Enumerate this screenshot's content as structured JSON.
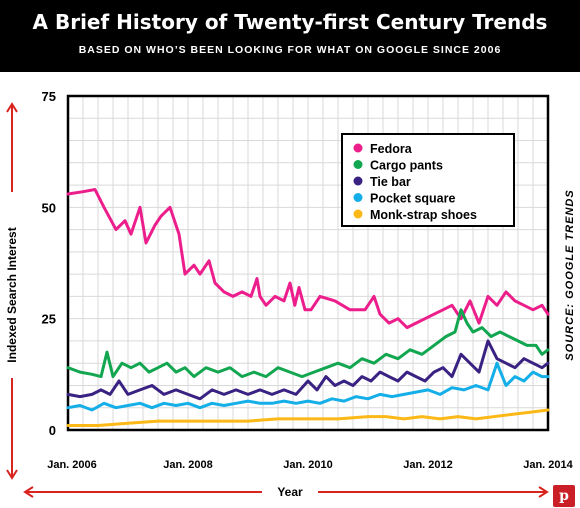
{
  "header": {
    "title": "A Brief History of Twenty-first Century Trends",
    "subtitle": "BASED ON WHO’S BEEN LOOKING FOR WHAT ON GOOGLE SINCE 2006"
  },
  "source_note": "SOURCE: GOOGLE TRENDS",
  "share_button": {
    "label": "p",
    "icon": "pinterest-icon"
  },
  "chart_data": {
    "type": "line",
    "title": "A Brief History of Twenty-first Century Trends",
    "subtitle": "BASED ON WHO’S BEEN LOOKING FOR WHAT ON GOOGLE SINCE 2006",
    "xlabel": "Year",
    "ylabel": "Indexed Search Interest",
    "xlim": [
      2006.0,
      2014.0
    ],
    "ylim": [
      0,
      75
    ],
    "x_ticks": [
      {
        "value": 2006,
        "label": "Jan. 2006"
      },
      {
        "value": 2008,
        "label": "Jan. 2008"
      },
      {
        "value": 2010,
        "label": "Jan. 2010"
      },
      {
        "value": 2012,
        "label": "Jan. 2012"
      },
      {
        "value": 2014,
        "label": "Jan. 2014"
      }
    ],
    "y_ticks": [
      0,
      25,
      50,
      75
    ],
    "grid": true,
    "legend_position": "top-right",
    "series": [
      {
        "name": "Fedora",
        "color": "#ec1e8c",
        "x": [
          2006.0,
          2006.25,
          2006.45,
          2006.6,
          2006.8,
          2006.95,
          2007.05,
          2007.2,
          2007.3,
          2007.45,
          2007.55,
          2007.7,
          2007.85,
          2007.95,
          2008.1,
          2008.2,
          2008.35,
          2008.45,
          2008.6,
          2008.75,
          2008.9,
          2009.05,
          2009.15,
          2009.2,
          2009.3,
          2009.45,
          2009.6,
          2009.7,
          2009.78,
          2009.85,
          2009.95,
          2010.05,
          2010.2,
          2010.45,
          2010.7,
          2010.95,
          2011.1,
          2011.2,
          2011.35,
          2011.5,
          2011.65,
          2011.8,
          2011.95,
          2012.1,
          2012.25,
          2012.4,
          2012.55,
          2012.7,
          2012.85,
          2013.0,
          2013.15,
          2013.3,
          2013.45,
          2013.6,
          2013.75,
          2013.9,
          2014.0
        ],
        "values": [
          53,
          53.5,
          54,
          50,
          45,
          47,
          44,
          50,
          42,
          46,
          48,
          50,
          44,
          35,
          37,
          35,
          38,
          33,
          31,
          30,
          31,
          30,
          34,
          30,
          28,
          30,
          29,
          33,
          28,
          32,
          27,
          27,
          30,
          29,
          27,
          27,
          30,
          26,
          24,
          25,
          23,
          24,
          25,
          26,
          27,
          28,
          25,
          29,
          24,
          30,
          28,
          31,
          29,
          28,
          27,
          28,
          26
        ]
      },
      {
        "name": "Cargo pants",
        "color": "#12a650",
        "x": [
          2006.0,
          2006.2,
          2006.4,
          2006.55,
          2006.65,
          2006.75,
          2006.9,
          2007.05,
          2007.2,
          2007.35,
          2007.5,
          2007.65,
          2007.8,
          2007.95,
          2008.1,
          2008.3,
          2008.5,
          2008.7,
          2008.9,
          2009.1,
          2009.3,
          2009.5,
          2009.7,
          2009.9,
          2010.1,
          2010.3,
          2010.5,
          2010.7,
          2010.9,
          2011.1,
          2011.3,
          2011.5,
          2011.7,
          2011.9,
          2012.1,
          2012.3,
          2012.45,
          2012.55,
          2012.65,
          2012.75,
          2012.9,
          2013.05,
          2013.2,
          2013.35,
          2013.5,
          2013.65,
          2013.8,
          2013.9,
          2014.0
        ],
        "values": [
          14,
          13,
          12.5,
          12,
          17.5,
          12,
          15,
          14,
          15,
          13,
          14,
          15,
          13,
          14,
          12,
          14,
          13,
          14,
          12,
          13,
          12,
          14,
          13,
          12,
          13,
          14,
          15,
          14,
          16,
          15,
          17,
          16,
          18,
          17,
          19,
          21,
          22,
          27,
          24,
          22,
          23,
          21,
          22,
          21,
          20,
          19,
          19,
          17,
          18
        ]
      },
      {
        "name": "Tie bar",
        "color": "#3a2282",
        "x": [
          2006.0,
          2006.2,
          2006.4,
          2006.55,
          2006.7,
          2006.85,
          2007.0,
          2007.2,
          2007.4,
          2007.6,
          2007.8,
          2008.0,
          2008.2,
          2008.4,
          2008.6,
          2008.8,
          2009.0,
          2009.2,
          2009.4,
          2009.6,
          2009.8,
          2010.0,
          2010.15,
          2010.3,
          2010.45,
          2010.6,
          2010.75,
          2010.9,
          2011.05,
          2011.2,
          2011.35,
          2011.5,
          2011.65,
          2011.8,
          2011.95,
          2012.1,
          2012.25,
          2012.4,
          2012.55,
          2012.7,
          2012.85,
          2013.0,
          2013.15,
          2013.3,
          2013.45,
          2013.6,
          2013.75,
          2013.9,
          2014.0
        ],
        "values": [
          8,
          7.5,
          8,
          9,
          8,
          11,
          8,
          9,
          10,
          8,
          9,
          8,
          7,
          9,
          8,
          9,
          8,
          9,
          8,
          9,
          8,
          11,
          9,
          12,
          10,
          11,
          10,
          12,
          11,
          13,
          12,
          11,
          13,
          12,
          11,
          13,
          14,
          12,
          17,
          15,
          13,
          20,
          16,
          15,
          14,
          16,
          15,
          14,
          15
        ]
      },
      {
        "name": "Pocket square",
        "color": "#14aee8",
        "x": [
          2006.0,
          2006.2,
          2006.4,
          2006.6,
          2006.8,
          2007.0,
          2007.2,
          2007.4,
          2007.6,
          2007.8,
          2008.0,
          2008.2,
          2008.4,
          2008.6,
          2008.8,
          2009.0,
          2009.2,
          2009.4,
          2009.6,
          2009.8,
          2010.0,
          2010.2,
          2010.4,
          2010.6,
          2010.8,
          2011.0,
          2011.2,
          2011.4,
          2011.6,
          2011.8,
          2012.0,
          2012.2,
          2012.4,
          2012.6,
          2012.8,
          2013.0,
          2013.15,
          2013.3,
          2013.45,
          2013.6,
          2013.75,
          2013.9,
          2014.0
        ],
        "values": [
          5,
          5.5,
          4.5,
          6,
          5,
          5.5,
          6,
          5,
          6,
          5.5,
          6,
          5,
          6,
          5.5,
          6,
          6.5,
          6,
          6,
          6.5,
          6,
          6.5,
          6,
          7,
          6.5,
          7.5,
          7,
          8,
          7.5,
          8,
          8.5,
          9,
          8,
          9.5,
          9,
          10,
          9,
          15,
          10,
          12,
          11,
          13,
          12,
          12
        ]
      },
      {
        "name": "Monk-strap shoes",
        "color": "#fbb817",
        "x": [
          2006.0,
          2006.5,
          2007.0,
          2007.5,
          2008.0,
          2008.5,
          2009.0,
          2009.5,
          2010.0,
          2010.5,
          2011.0,
          2011.3,
          2011.6,
          2011.9,
          2012.2,
          2012.5,
          2012.8,
          2013.1,
          2013.4,
          2013.7,
          2014.0
        ],
        "values": [
          1,
          1,
          1.5,
          2,
          2,
          2,
          2,
          2.5,
          2.5,
          2.5,
          3,
          3,
          2.5,
          3,
          2.5,
          3,
          2.5,
          3,
          3.5,
          4,
          4.5
        ]
      }
    ]
  }
}
